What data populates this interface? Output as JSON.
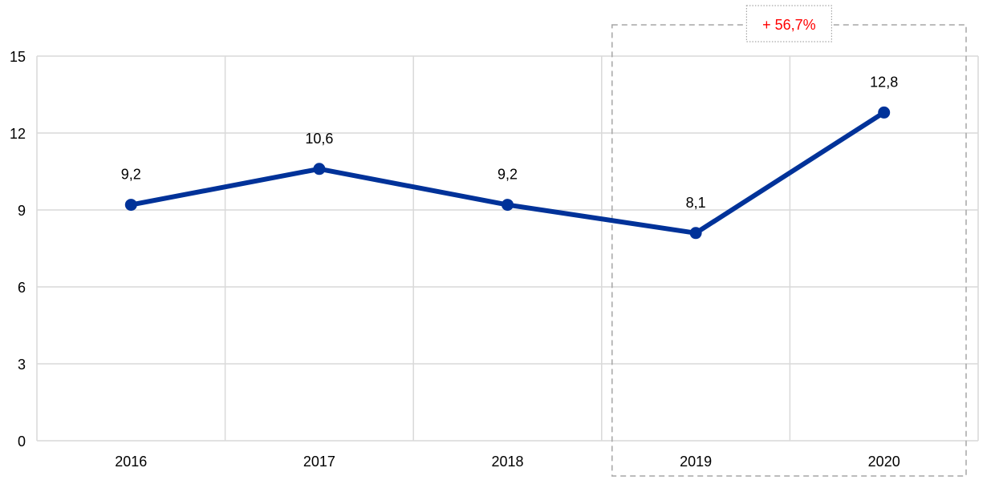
{
  "chart_data": {
    "type": "line",
    "categories": [
      "2016",
      "2017",
      "2018",
      "2019",
      "2020"
    ],
    "values": [
      9.2,
      10.6,
      9.2,
      8.1,
      12.8
    ],
    "data_labels": [
      "9,2",
      "10,6",
      "9,2",
      "8,1",
      "12,8"
    ],
    "ylim": [
      0,
      15
    ],
    "yticks": [
      0,
      3,
      6,
      9,
      12,
      15
    ],
    "ytick_labels": [
      "0",
      "3",
      "6",
      "9",
      "12",
      "15"
    ],
    "grid": true,
    "series_color": "#003299",
    "annotation": {
      "text": "+ 56,7%",
      "color": "#FF0000",
      "highlight_categories": [
        "2019",
        "2020"
      ]
    }
  }
}
